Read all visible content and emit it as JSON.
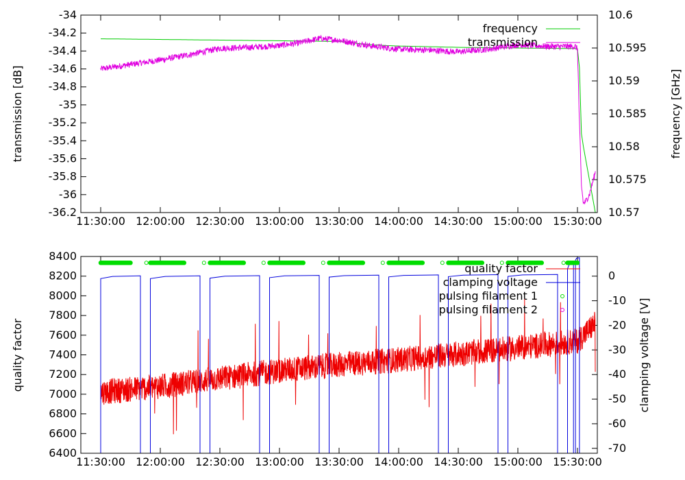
{
  "chart_data": [
    {
      "type": "line",
      "title": "",
      "x_ticks": [
        "11:30:00",
        "12:00:00",
        "12:30:00",
        "13:00:00",
        "13:30:00",
        "14:00:00",
        "14:30:00",
        "15:00:00",
        "15:30:00"
      ],
      "y_left": {
        "label": "transmission [dB]",
        "range": [
          -36.2,
          -34
        ],
        "ticks": [
          "-34",
          "-34.2",
          "-34.4",
          "-34.6",
          "-34.8",
          "-35",
          "-35.2",
          "-35.4",
          "-35.6",
          "-35.8",
          "-36",
          "-36.2"
        ]
      },
      "y_right": {
        "label": "frequency [GHz]",
        "range": [
          10.57,
          10.6
        ],
        "ticks": [
          "10.6",
          "10.595",
          "10.59",
          "10.585",
          "10.58",
          "10.575",
          "10.57"
        ]
      },
      "legend_position": "top-right",
      "series": [
        {
          "name": "frequency",
          "axis": "right",
          "color": "#00cc00",
          "points": [
            [
              "11:30:00",
              10.5964
            ],
            [
              "12:00:00",
              10.5963
            ],
            [
              "12:30:00",
              10.5962
            ],
            [
              "13:00:00",
              10.5961
            ],
            [
              "13:30:00",
              10.596
            ],
            [
              "13:45:00",
              10.5955
            ],
            [
              "14:00:00",
              10.5953
            ],
            [
              "14:30:00",
              10.5951
            ],
            [
              "15:00:00",
              10.595
            ],
            [
              "15:30:00",
              10.5949
            ],
            [
              "15:31:00",
              10.592
            ],
            [
              "15:32:00",
              10.582
            ],
            [
              "15:33:00",
              10.58
            ],
            [
              "15:36:00",
              10.575
            ],
            [
              "15:39:00",
              10.57
            ]
          ]
        },
        {
          "name": "transmission",
          "axis": "left",
          "color": "#e000e0",
          "points": [
            [
              "11:30:00",
              -34.6
            ],
            [
              "11:45:00",
              -34.55
            ],
            [
              "12:00:00",
              -34.5
            ],
            [
              "12:15:00",
              -34.44
            ],
            [
              "12:30:00",
              -34.37
            ],
            [
              "12:45:00",
              -34.36
            ],
            [
              "13:00:00",
              -34.34
            ],
            [
              "13:10:00",
              -34.31
            ],
            [
              "13:20:00",
              -34.26
            ],
            [
              "13:30:00",
              -34.28
            ],
            [
              "13:45:00",
              -34.34
            ],
            [
              "14:00:00",
              -34.38
            ],
            [
              "14:15:00",
              -34.39
            ],
            [
              "14:30:00",
              -34.41
            ],
            [
              "14:45:00",
              -34.38
            ],
            [
              "15:00:00",
              -34.33
            ],
            [
              "15:15:00",
              -34.35
            ],
            [
              "15:29:00",
              -34.35
            ],
            [
              "15:30:00",
              -34.38
            ],
            [
              "15:31:00",
              -35.2
            ],
            [
              "15:32:00",
              -35.9
            ],
            [
              "15:33:00",
              -36.1
            ],
            [
              "15:34:00",
              -36.08
            ],
            [
              "15:36:00",
              -36.0
            ],
            [
              "15:39:00",
              -35.75
            ]
          ]
        }
      ]
    },
    {
      "type": "line",
      "title": "",
      "x_ticks": [
        "11:30:00",
        "12:00:00",
        "12:30:00",
        "13:00:00",
        "13:30:00",
        "14:00:00",
        "14:30:00",
        "15:00:00",
        "15:30:00"
      ],
      "y_left": {
        "label": "quality factor",
        "range": [
          6400,
          8400
        ],
        "ticks": [
          "8400",
          "8200",
          "8000",
          "7800",
          "7600",
          "7400",
          "7200",
          "7000",
          "6800",
          "6600",
          "6400"
        ]
      },
      "y_right": {
        "label": "clamping voltage [V]",
        "range": [
          -72,
          8
        ],
        "ticks": [
          "0",
          "-10",
          "-20",
          "-30",
          "-40",
          "-50",
          "-60",
          "-70"
        ]
      },
      "legend_position": "top-right",
      "series": [
        {
          "name": "quality factor",
          "axis": "left",
          "color": "#ee0000",
          "trend": [
            [
              "11:30:00",
              7020
            ],
            [
              "12:00:00",
              7080
            ],
            [
              "12:30:00",
              7160
            ],
            [
              "13:00:00",
              7240
            ],
            [
              "13:30:00",
              7300
            ],
            [
              "14:00:00",
              7350
            ],
            [
              "14:30:00",
              7410
            ],
            [
              "15:00:00",
              7470
            ],
            [
              "15:30:00",
              7540
            ],
            [
              "15:39:00",
              7720
            ]
          ],
          "noise_amplitude": 130
        },
        {
          "name": "clamping voltage",
          "axis": "right",
          "color": "#0000dd",
          "cycles": [
            {
              "rise": "11:30:00",
              "level_start": -1.0,
              "level_end": 0.1,
              "fall": "11:50:00"
            },
            {
              "rise": "11:55:00",
              "level_start": -1.0,
              "level_end": 0.1,
              "fall": "12:20:00"
            },
            {
              "rise": "12:25:00",
              "level_start": -0.8,
              "level_end": 0.2,
              "fall": "12:50:00"
            },
            {
              "rise": "12:55:00",
              "level_start": -0.6,
              "level_end": 0.3,
              "fall": "13:20:00"
            },
            {
              "rise": "13:25:00",
              "level_start": -0.4,
              "level_end": 0.4,
              "fall": "13:50:00"
            },
            {
              "rise": "13:55:00",
              "level_start": -0.3,
              "level_end": 0.5,
              "fall": "14:20:00"
            },
            {
              "rise": "14:25:00",
              "level_start": -0.2,
              "level_end": 0.6,
              "fall": "14:50:00"
            },
            {
              "rise": "14:55:00",
              "level_start": -0.1,
              "level_end": 0.7,
              "fall": "15:20:00"
            },
            {
              "rise": "15:25:00",
              "level_start": 3.0,
              "level_end": 5.0,
              "fall": "15:28:00"
            },
            {
              "rise": "15:29:00",
              "level_start": 6.5,
              "level_end": 7.5,
              "fall": "15:31:00"
            }
          ],
          "bottom": -72
        },
        {
          "name": "pulsing filament 1",
          "axis": "left",
          "color": "#00dd00",
          "marker": "circle",
          "y": 8335,
          "bursts": [
            [
              "11:30:00",
              "11:45:00"
            ],
            [
              "11:55:00",
              "12:12:00"
            ],
            [
              "12:25:00",
              "12:42:00"
            ],
            [
              "12:55:00",
              "13:12:00"
            ],
            [
              "13:25:00",
              "13:42:00"
            ],
            [
              "13:55:00",
              "14:12:00"
            ],
            [
              "14:25:00",
              "14:42:00"
            ],
            [
              "14:55:00",
              "15:12:00"
            ],
            [
              "15:25:00",
              "15:30:00"
            ]
          ],
          "singles": [
            "11:53:00",
            "12:22:00",
            "12:52:00",
            "13:22:00",
            "13:52:00",
            "14:22:00",
            "14:52:00",
            "15:23:00"
          ]
        },
        {
          "name": "pulsing filament 2",
          "axis": "left",
          "color": "#e000e0",
          "marker": "circle"
        }
      ]
    }
  ]
}
